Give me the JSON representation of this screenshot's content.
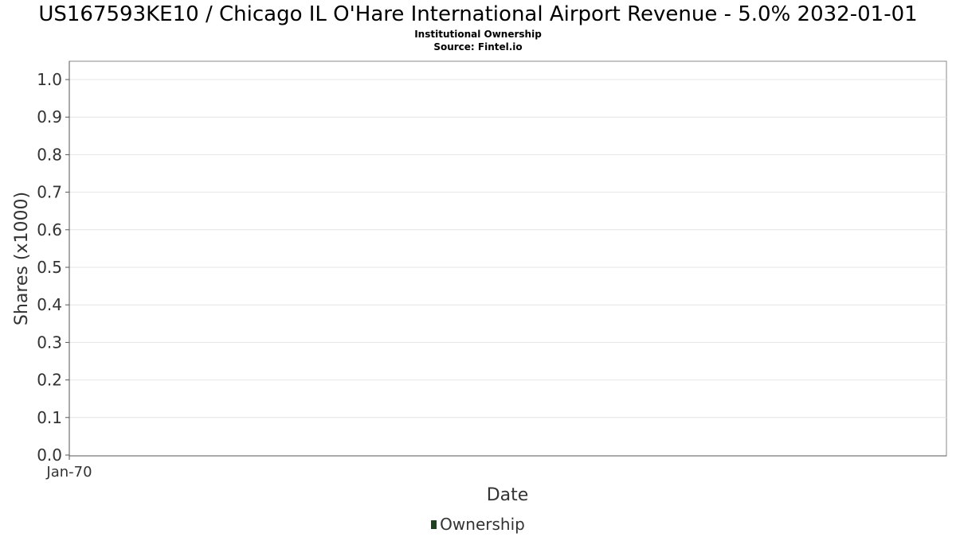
{
  "chart_data": {
    "type": "line",
    "title": "US167593KE10 / Chicago IL O'Hare International Airport Revenue - 5.0% 2032-01-01",
    "subtitle": "Institutional Ownership",
    "source": "Source: Fintel.io",
    "xlabel": "Date",
    "ylabel": "Shares (x1000)",
    "ylim": [
      0,
      1.0
    ],
    "y_ticks": [
      "0.0",
      "0.1",
      "0.2",
      "0.3",
      "0.4",
      "0.5",
      "0.6",
      "0.7",
      "0.8",
      "0.9",
      "1.0"
    ],
    "x_ticks": [
      "Jan-70"
    ],
    "grid": true,
    "legend_position": "bottom",
    "series": [
      {
        "name": "Ownership",
        "color": "#1c4220",
        "values": []
      }
    ]
  }
}
